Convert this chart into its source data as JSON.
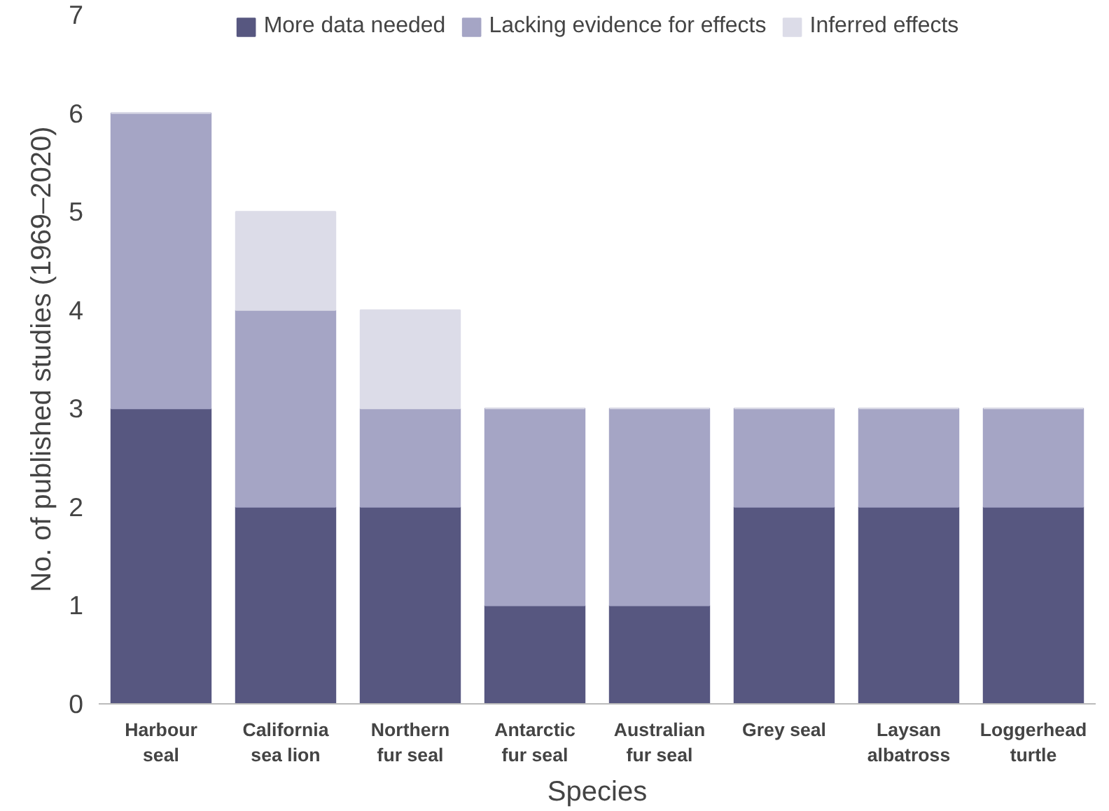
{
  "chart_data": {
    "type": "bar",
    "stacked": true,
    "xlabel": "Species",
    "ylabel": "No. of published studies (1969–2020)",
    "categories": [
      "Harbour\nseal",
      "California\nsea lion",
      "Northern\nfur seal",
      "Antarctic\nfur seal",
      "Australian\nfur seal",
      "Grey seal",
      "Laysan\nalbatross",
      "Loggerhead\nturtle"
    ],
    "series": [
      {
        "name": "More data needed",
        "color": "#575780",
        "values": [
          3,
          2,
          2,
          1,
          1,
          2,
          2,
          2
        ]
      },
      {
        "name": "Lacking evidence for effects",
        "color": "#a5a5c5",
        "values": [
          3,
          2,
          1,
          2,
          2,
          1,
          1,
          1
        ]
      },
      {
        "name": "Inferred effects",
        "color": "#dcdce8",
        "values": [
          0,
          1,
          1,
          0,
          0,
          0,
          0,
          0
        ]
      }
    ],
    "ylim": [
      0,
      7
    ],
    "yticks": [
      0,
      1,
      2,
      3,
      4,
      5,
      6,
      7
    ],
    "grid": false,
    "legend": "top"
  }
}
